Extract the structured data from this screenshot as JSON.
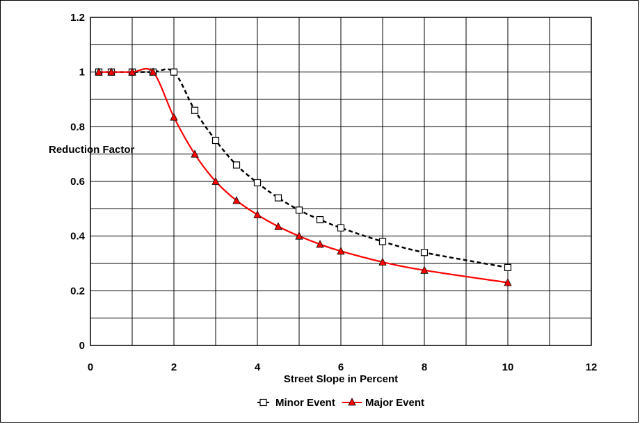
{
  "chart_data": {
    "type": "line",
    "title": "",
    "xlabel": "Street Slope in Percent",
    "ylabel": "Reduction Factor",
    "xlim": [
      0,
      12
    ],
    "ylim": [
      0,
      1.2
    ],
    "xticks": [
      0,
      2,
      4,
      6,
      8,
      10,
      12
    ],
    "yticks": [
      0,
      0.2,
      0.4,
      0.6,
      0.8,
      1,
      1.2
    ],
    "x_tick_labels": [
      "0",
      "2",
      "4",
      "6",
      "8",
      "10",
      "12"
    ],
    "y_tick_labels": [
      "0",
      "0.2",
      "0.4",
      "0.6",
      "0.8",
      "1",
      "1.2"
    ],
    "x_grid_step": 1,
    "y_grid_step": 0.1,
    "grid": true,
    "legend_position": "bottom",
    "series": [
      {
        "name": "Minor Event",
        "color": "#000000",
        "line_style": "dashed",
        "marker": "open-square",
        "x": [
          0.2,
          0.5,
          1,
          1.5,
          2,
          2.5,
          3,
          3.5,
          4,
          4.5,
          5,
          5.5,
          6,
          7,
          8,
          10
        ],
        "y": [
          1.0,
          1.0,
          1.0,
          1.0,
          1.0,
          0.86,
          0.75,
          0.66,
          0.595,
          0.54,
          0.495,
          0.46,
          0.43,
          0.38,
          0.34,
          0.285
        ]
      },
      {
        "name": "Major Event",
        "color": "#ff0000",
        "line_style": "solid",
        "marker": "filled-triangle",
        "x": [
          0.2,
          0.5,
          1,
          1.5,
          2,
          2.5,
          3,
          3.5,
          4,
          4.5,
          5,
          5.5,
          6,
          7,
          8,
          10
        ],
        "y": [
          1.0,
          1.0,
          1.0,
          1.0,
          0.835,
          0.7,
          0.6,
          0.53,
          0.478,
          0.435,
          0.4,
          0.37,
          0.345,
          0.305,
          0.275,
          0.23
        ]
      }
    ]
  }
}
